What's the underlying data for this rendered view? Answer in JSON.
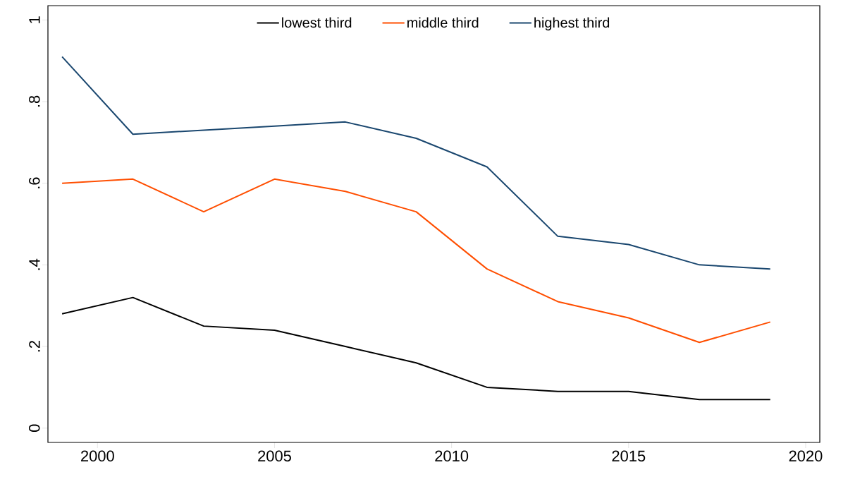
{
  "chart_data": {
    "type": "line",
    "x": [
      1999,
      2001,
      2003,
      2005,
      2007,
      2009,
      2011,
      2013,
      2015,
      2017,
      2019
    ],
    "series": [
      {
        "name": "lowest third",
        "color": "#000000",
        "values": [
          0.28,
          0.32,
          0.25,
          0.24,
          0.2,
          0.16,
          0.1,
          0.09,
          0.09,
          0.07,
          0.07
        ]
      },
      {
        "name": "middle third",
        "color": "#ff4e00",
        "values": [
          0.6,
          0.61,
          0.53,
          0.61,
          0.58,
          0.53,
          0.39,
          0.31,
          0.27,
          0.21,
          0.26
        ]
      },
      {
        "name": "highest third",
        "color": "#1a476f",
        "values": [
          0.91,
          0.72,
          0.73,
          0.74,
          0.75,
          0.71,
          0.64,
          0.47,
          0.45,
          0.4,
          0.39
        ]
      }
    ],
    "xlim": [
      1998.6,
      2020.4
    ],
    "ylim": [
      -0.035,
      1.035
    ],
    "xticks": [
      2000,
      2005,
      2010,
      2015,
      2020
    ],
    "yticks": [
      0,
      {
        "value": 0.2,
        "label": ".2"
      },
      {
        "value": 0.4,
        "label": ".4"
      },
      {
        "value": 0.6,
        "label": ".6"
      },
      {
        "value": 0.8,
        "label": ".8"
      },
      1
    ],
    "legend": "top",
    "grid": false,
    "marker": "none",
    "line_style": "solid"
  }
}
